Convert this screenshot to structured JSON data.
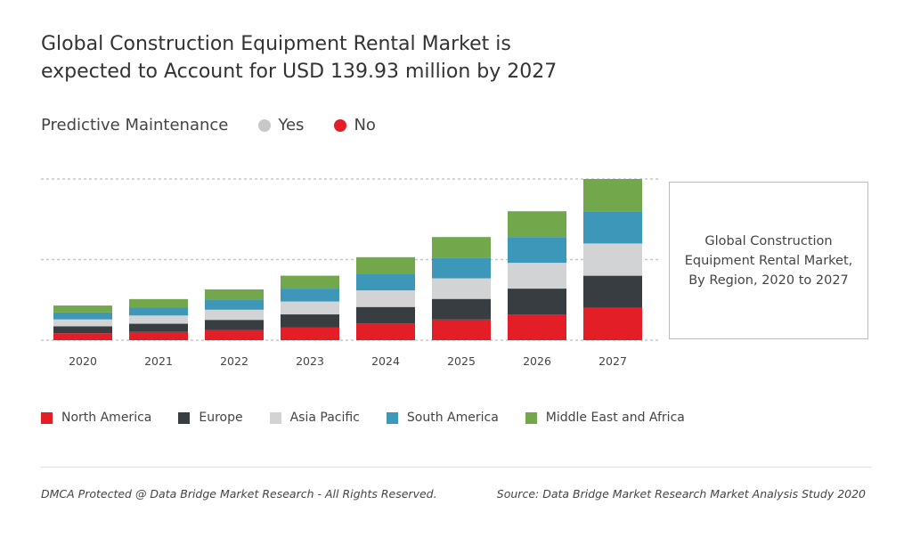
{
  "title_line1": "Global Construction Equipment Rental Market is",
  "title_line2": "expected to Account for USD 139.93 million by 2027",
  "predictive": {
    "label": "Predictive Maintenance",
    "yes": "Yes",
    "no": "No",
    "yes_color": "#c8c8c8",
    "no_color": "#e31e26"
  },
  "box_text": "Global Construction Equipment Rental Market, By Region, 2020 to 2027",
  "footer_left": "DMCA Protected @ Data Bridge Market Research - All Rights Reserved.",
  "footer_right": "Source: Data Bridge Market Research Market Analysis Study 2020",
  "chart_data": {
    "type": "bar",
    "stacked": true,
    "categories": [
      "2020",
      "2021",
      "2022",
      "2023",
      "2024",
      "2025",
      "2026",
      "2027"
    ],
    "series": [
      {
        "name": "North America",
        "color": "#e31e26",
        "values": [
          4.3,
          5.1,
          6.3,
          8.0,
          10.3,
          12.8,
          16.0,
          20.0
        ]
      },
      {
        "name": "Europe",
        "color": "#373d40",
        "values": [
          4.3,
          5.1,
          6.3,
          8.0,
          10.3,
          12.8,
          16.0,
          20.0
        ]
      },
      {
        "name": "Asia Pacific",
        "color": "#d2d3d4",
        "values": [
          4.3,
          5.1,
          6.3,
          8.0,
          10.3,
          12.8,
          16.0,
          20.0
        ]
      },
      {
        "name": "South America",
        "color": "#3d97b9",
        "values": [
          4.3,
          5.1,
          6.3,
          8.0,
          10.3,
          12.8,
          16.0,
          20.0
        ]
      },
      {
        "name": "Middle East and Africa",
        "color": "#72a84b",
        "values": [
          4.3,
          5.1,
          6.3,
          8.0,
          10.3,
          12.8,
          16.0,
          20.0
        ]
      }
    ],
    "ylim": [
      0,
      100
    ],
    "grid": true,
    "legend_placement": "bottom"
  }
}
